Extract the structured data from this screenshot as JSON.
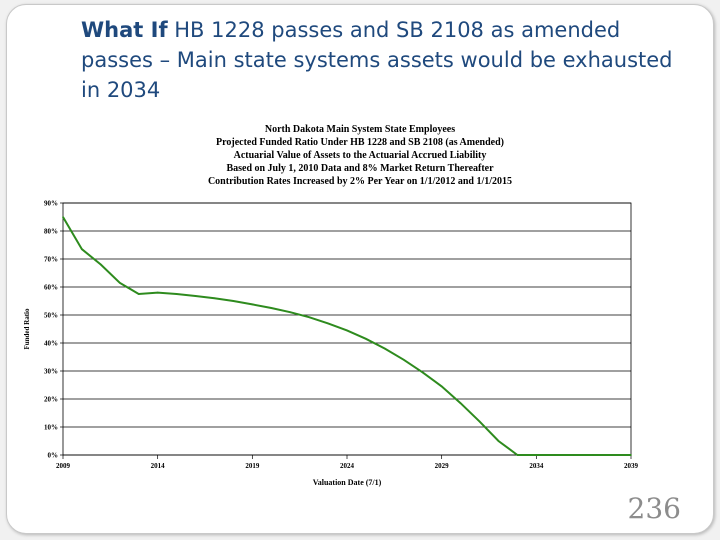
{
  "slide": {
    "title_bold": "What If",
    "title_rest": " HB 1228 passes and SB 2108 as amended passes – Main state systems assets would be exhausted in 2034",
    "page_number": "236"
  },
  "chart_data": {
    "type": "line",
    "title_lines": [
      "North Dakota Main System State Employees",
      "Projected Funded Ratio Under HB 1228 and SB 2108 (as Amended)",
      "Actuarial Value of Assets to the Actuarial Accrued Liability",
      "Based on July 1, 2010 Data and 8% Market Return Thereafter",
      "Contribution Rates Increased by 2% Per Year on 1/1/2012 and 1/1/2015"
    ],
    "xlabel": "Valuation Date (7/1)",
    "ylabel": "Funded Ratio",
    "xlim": [
      2009,
      2039
    ],
    "ylim": [
      0,
      90
    ],
    "x_ticks": [
      2009,
      2014,
      2019,
      2024,
      2029,
      2034,
      2039
    ],
    "y_ticks": [
      0,
      10,
      20,
      30,
      40,
      50,
      60,
      70,
      80,
      90
    ],
    "y_tick_suffix": "%",
    "grid": "horizontal",
    "line_color": "#2e8b1e",
    "x": [
      2009,
      2010,
      2011,
      2012,
      2013,
      2014,
      2015,
      2016,
      2017,
      2018,
      2019,
      2020,
      2021,
      2022,
      2023,
      2024,
      2025,
      2026,
      2027,
      2028,
      2029,
      2030,
      2031,
      2032,
      2033,
      2034,
      2035,
      2036,
      2037,
      2038,
      2039
    ],
    "y": [
      85,
      73.5,
      68,
      61.5,
      57.5,
      58,
      57.5,
      56.8,
      56,
      55,
      53.8,
      52.5,
      51,
      49.2,
      47,
      44.5,
      41.5,
      38,
      34,
      29.5,
      24.5,
      18.5,
      12,
      5,
      0,
      0,
      0,
      0,
      0,
      0,
      0
    ]
  }
}
